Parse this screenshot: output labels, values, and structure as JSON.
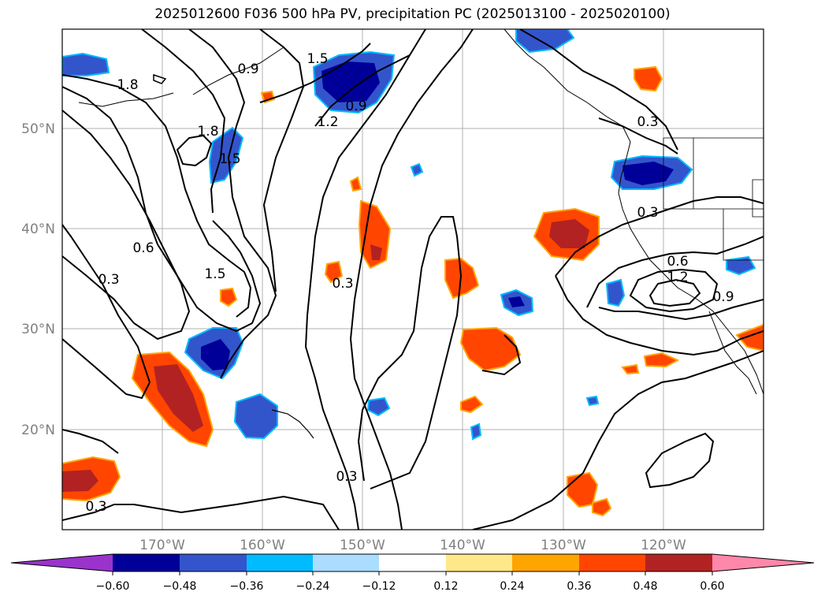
{
  "title": "2025012600 F036 500 hPa PV, precipitation PC (2025013100 - 2025020100)",
  "lat_labels": [
    "50°N",
    "40°N",
    "30°N",
    "20°N"
  ],
  "lon_labels": [
    "170°W",
    "160°W",
    "150°W",
    "140°W",
    "130°W",
    "120°W"
  ],
  "contour_labels": [
    "1.8",
    "1.8",
    "1.5",
    "1.5",
    "1.2",
    "1.2",
    "0.9",
    "0.9",
    "0.9",
    "0.6",
    "0.6",
    "0.3",
    "0.3",
    "0.3",
    "0.3",
    "0.3",
    "0.3",
    "1.5"
  ],
  "colorbar": {
    "ticks": [
      "−0.60",
      "−0.48",
      "−0.36",
      "−0.24",
      "−0.12",
      "0.12",
      "0.24",
      "0.36",
      "0.48",
      "0.60"
    ],
    "colors": [
      "#9933cc",
      "#000099",
      "#3355cc",
      "#00bbff",
      "#aaddff",
      "#ffffff",
      "#ffe88a",
      "#ffa500",
      "#ff4500",
      "#b22222",
      "#ff88aa"
    ]
  }
}
